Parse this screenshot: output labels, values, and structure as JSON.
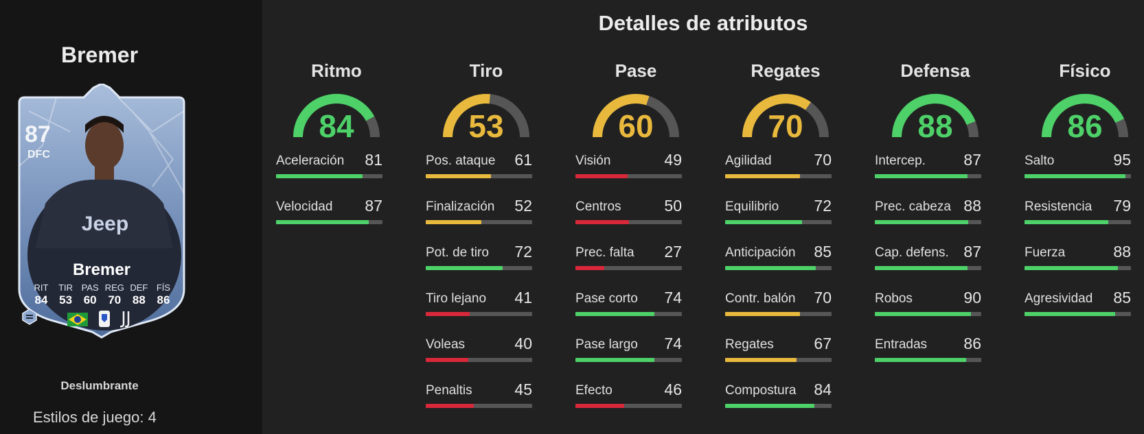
{
  "player": {
    "name": "Bremer",
    "card": {
      "rating": "87",
      "position": "DFC",
      "name": "Bremer",
      "stats": [
        {
          "label": "RIT",
          "value": "84"
        },
        {
          "label": "TIR",
          "value": "53"
        },
        {
          "label": "PAS",
          "value": "60"
        },
        {
          "label": "REG",
          "value": "70"
        },
        {
          "label": "DEF",
          "value": "88"
        },
        {
          "label": "FÍS",
          "value": "86"
        }
      ],
      "icons": [
        "brazil-flag-icon",
        "league-badge-icon",
        "juventus-club-icon"
      ]
    },
    "playstyle_name": "Deslumbrante",
    "playstyles_label": "Estilos de juego:",
    "playstyles_count": "4"
  },
  "main": {
    "title": "Detalles de atributos"
  },
  "colors": {
    "green": "#4dd168",
    "yellow": "#e8b93d",
    "red": "#d9283a",
    "track": "#565656"
  },
  "categories": [
    {
      "name": "Ritmo",
      "value": 84,
      "color": "green",
      "attributes": [
        {
          "label": "Aceleración",
          "value": 81,
          "color": "green"
        },
        {
          "label": "Velocidad",
          "value": 87,
          "color": "green"
        }
      ]
    },
    {
      "name": "Tiro",
      "value": 53,
      "color": "yellow",
      "attributes": [
        {
          "label": "Pos. ataque",
          "value": 61,
          "color": "yellow"
        },
        {
          "label": "Finalización",
          "value": 52,
          "color": "yellow"
        },
        {
          "label": "Pot. de tiro",
          "value": 72,
          "color": "green"
        },
        {
          "label": "Tiro lejano",
          "value": 41,
          "color": "red"
        },
        {
          "label": "Voleas",
          "value": 40,
          "color": "red"
        },
        {
          "label": "Penaltis",
          "value": 45,
          "color": "red"
        }
      ]
    },
    {
      "name": "Pase",
      "value": 60,
      "color": "yellow",
      "attributes": [
        {
          "label": "Visión",
          "value": 49,
          "color": "red"
        },
        {
          "label": "Centros",
          "value": 50,
          "color": "red"
        },
        {
          "label": "Prec. falta",
          "value": 27,
          "color": "red"
        },
        {
          "label": "Pase corto",
          "value": 74,
          "color": "green"
        },
        {
          "label": "Pase largo",
          "value": 74,
          "color": "green"
        },
        {
          "label": "Efecto",
          "value": 46,
          "color": "red"
        }
      ]
    },
    {
      "name": "Regates",
      "value": 70,
      "color": "yellow",
      "attributes": [
        {
          "label": "Agilidad",
          "value": 70,
          "color": "yellow"
        },
        {
          "label": "Equilibrio",
          "value": 72,
          "color": "green"
        },
        {
          "label": "Anticipación",
          "value": 85,
          "color": "green"
        },
        {
          "label": "Contr. balón",
          "value": 70,
          "color": "yellow"
        },
        {
          "label": "Regates",
          "value": 67,
          "color": "yellow"
        },
        {
          "label": "Compostura",
          "value": 84,
          "color": "green"
        }
      ]
    },
    {
      "name": "Defensa",
      "value": 88,
      "color": "green",
      "attributes": [
        {
          "label": "Intercep.",
          "value": 87,
          "color": "green"
        },
        {
          "label": "Prec. cabeza",
          "value": 88,
          "color": "green"
        },
        {
          "label": "Cap. defens.",
          "value": 87,
          "color": "green"
        },
        {
          "label": "Robos",
          "value": 90,
          "color": "green"
        },
        {
          "label": "Entradas",
          "value": 86,
          "color": "green"
        }
      ]
    },
    {
      "name": "Físico",
      "value": 86,
      "color": "green",
      "attributes": [
        {
          "label": "Salto",
          "value": 95,
          "color": "green"
        },
        {
          "label": "Resistencia",
          "value": 79,
          "color": "green"
        },
        {
          "label": "Fuerza",
          "value": 88,
          "color": "green"
        },
        {
          "label": "Agresividad",
          "value": 85,
          "color": "green"
        }
      ]
    }
  ]
}
